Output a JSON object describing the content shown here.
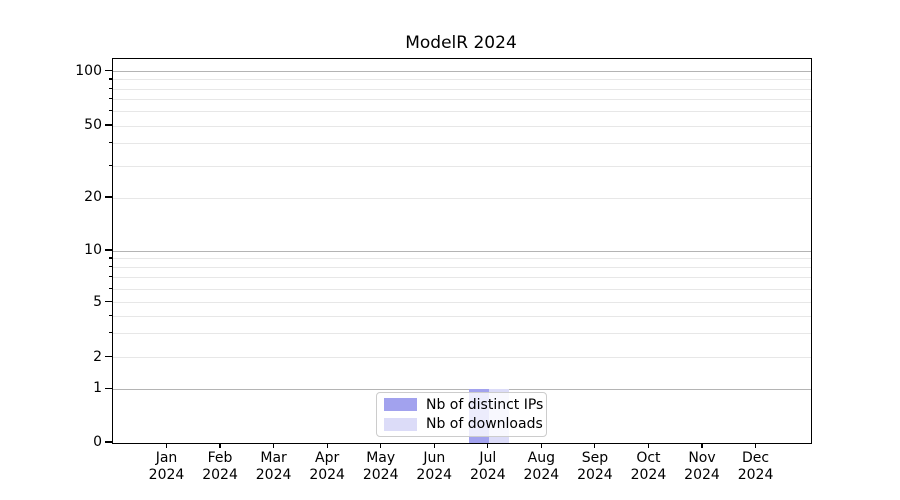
{
  "chart_data": {
    "type": "bar",
    "title": "ModelR 2024",
    "categories": [
      {
        "month": "Jan",
        "year": "2024"
      },
      {
        "month": "Feb",
        "year": "2024"
      },
      {
        "month": "Mar",
        "year": "2024"
      },
      {
        "month": "Apr",
        "year": "2024"
      },
      {
        "month": "May",
        "year": "2024"
      },
      {
        "month": "Jun",
        "year": "2024"
      },
      {
        "month": "Jul",
        "year": "2024"
      },
      {
        "month": "Aug",
        "year": "2024"
      },
      {
        "month": "Sep",
        "year": "2024"
      },
      {
        "month": "Oct",
        "year": "2024"
      },
      {
        "month": "Nov",
        "year": "2024"
      },
      {
        "month": "Dec",
        "year": "2024"
      }
    ],
    "series": [
      {
        "name": "Nb of distinct IPs",
        "color": "#a2a2ee",
        "values": [
          0,
          0,
          0,
          0,
          0,
          0,
          1,
          0,
          0,
          0,
          0,
          0
        ]
      },
      {
        "name": "Nb of downloads",
        "color": "#dcdcf8",
        "values": [
          0,
          0,
          0,
          0,
          0,
          0,
          1,
          0,
          0,
          0,
          0,
          0
        ]
      }
    ],
    "y_axis": {
      "scale": "log-like",
      "tick_values": [
        0,
        1,
        2,
        5,
        10,
        20,
        50,
        100
      ],
      "minor_tick_values": [
        3,
        4,
        6,
        7,
        8,
        9,
        30,
        40,
        60,
        70,
        80,
        90
      ],
      "major_grid_values": [
        1,
        10,
        100
      ]
    },
    "x_axis": {
      "label_lines": 2
    },
    "legend": {
      "position": "lower center"
    },
    "grid": true,
    "colors": {
      "major_grid": "#b4b4b4",
      "minor_grid": "#e7e7e7",
      "spine": "#000000",
      "background": "#ffffff"
    }
  }
}
